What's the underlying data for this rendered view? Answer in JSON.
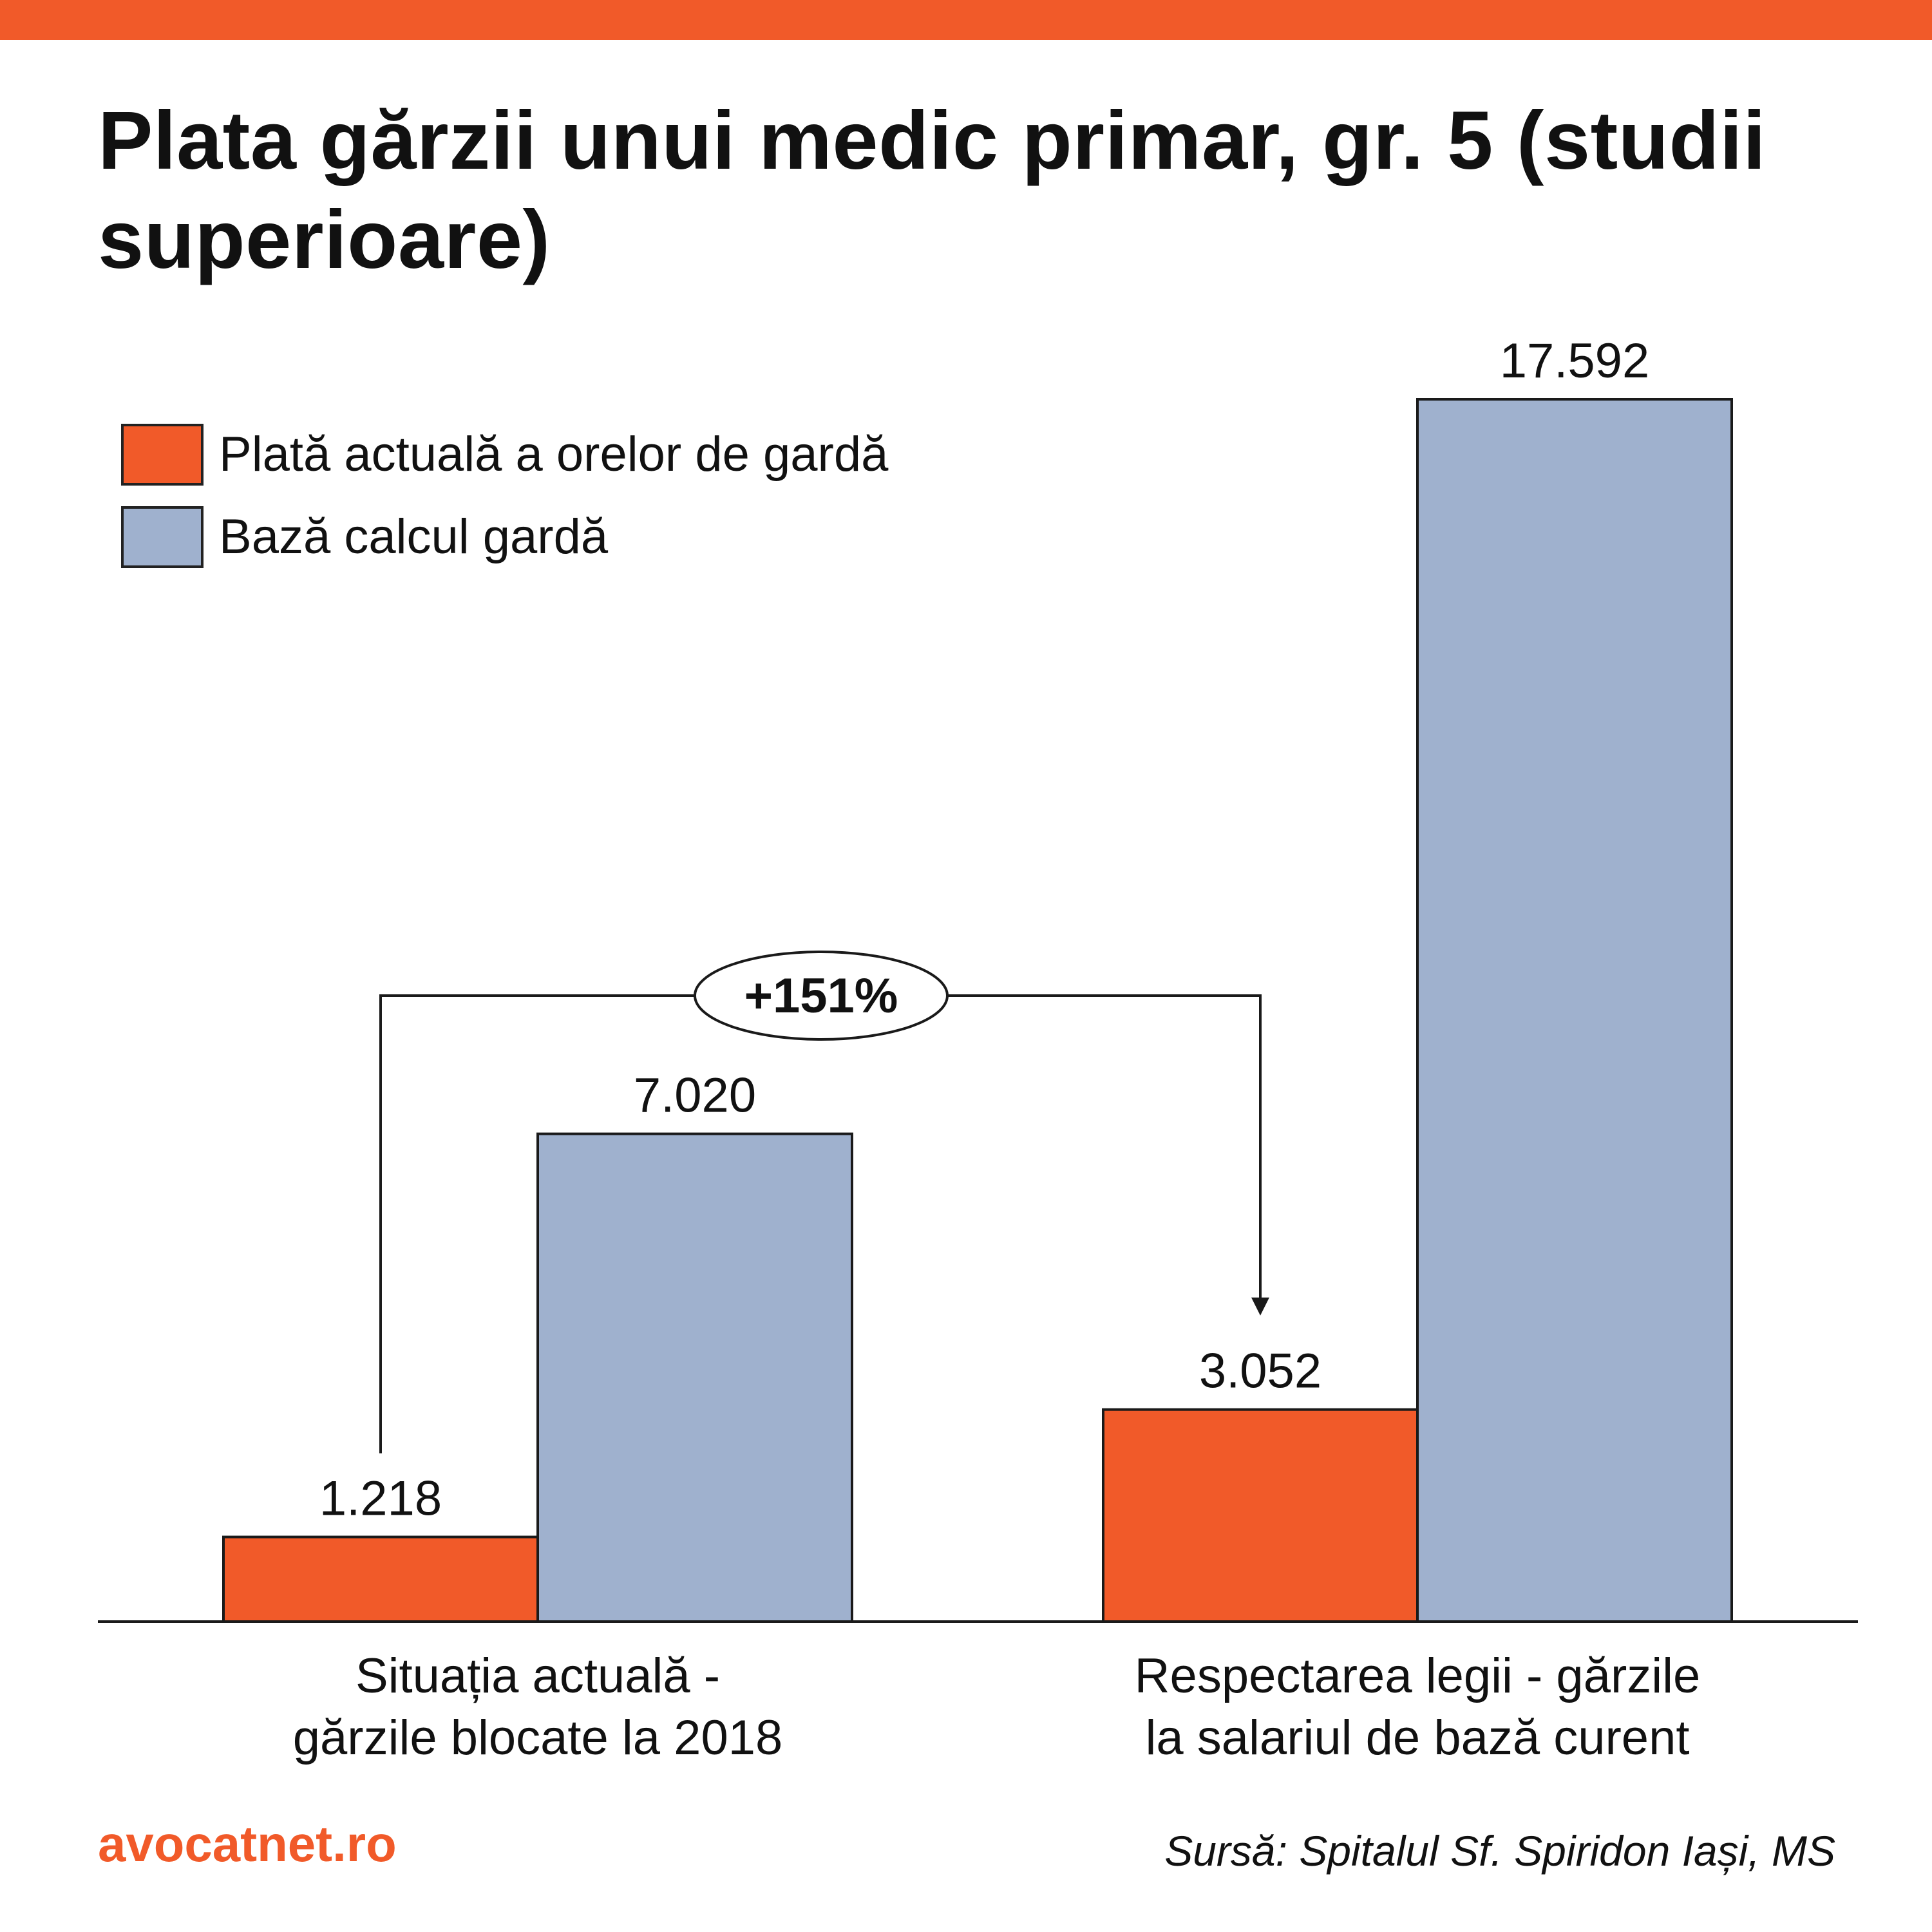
{
  "title": "Plata gărzii unui medic primar, gr. 5 (studii superioare)",
  "colors": {
    "accent": "#f15a29",
    "series_actual": "#f15a29",
    "series_base": "#9fb1ce",
    "text": "#111111"
  },
  "annotation": {
    "label": "+151%",
    "from": "Situația actuală - gărzile blocate la 2018",
    "to": "Respectarea legii - gărzile la salariul de bază curent"
  },
  "footer": {
    "brand": "avocatnet.ro",
    "source": "Sursă: Spitalul Sf. Spiridon Iași, MS"
  },
  "chart_data": {
    "type": "bar",
    "title": "Plata gărzii unui medic primar, gr. 5 (studii superioare)",
    "categories": [
      [
        "Situația actuală -",
        "gărzile blocate la 2018"
      ],
      [
        "Respectarea legii - gărzile",
        "la salariul de bază curent"
      ]
    ],
    "series": [
      {
        "name": "Plată actuală a orelor de gardă",
        "values": [
          1218,
          3052
        ],
        "labels": [
          "1.218",
          "3.052"
        ],
        "color": "#f15a29"
      },
      {
        "name": "Bază calcul gardă",
        "values": [
          7020,
          17592
        ],
        "labels": [
          "7.020",
          "17.592"
        ],
        "color": "#9fb1ce"
      }
    ],
    "ylim": [
      0,
      17592
    ],
    "xlabel": "",
    "ylabel": "",
    "grid": false,
    "legend": "top-left"
  }
}
